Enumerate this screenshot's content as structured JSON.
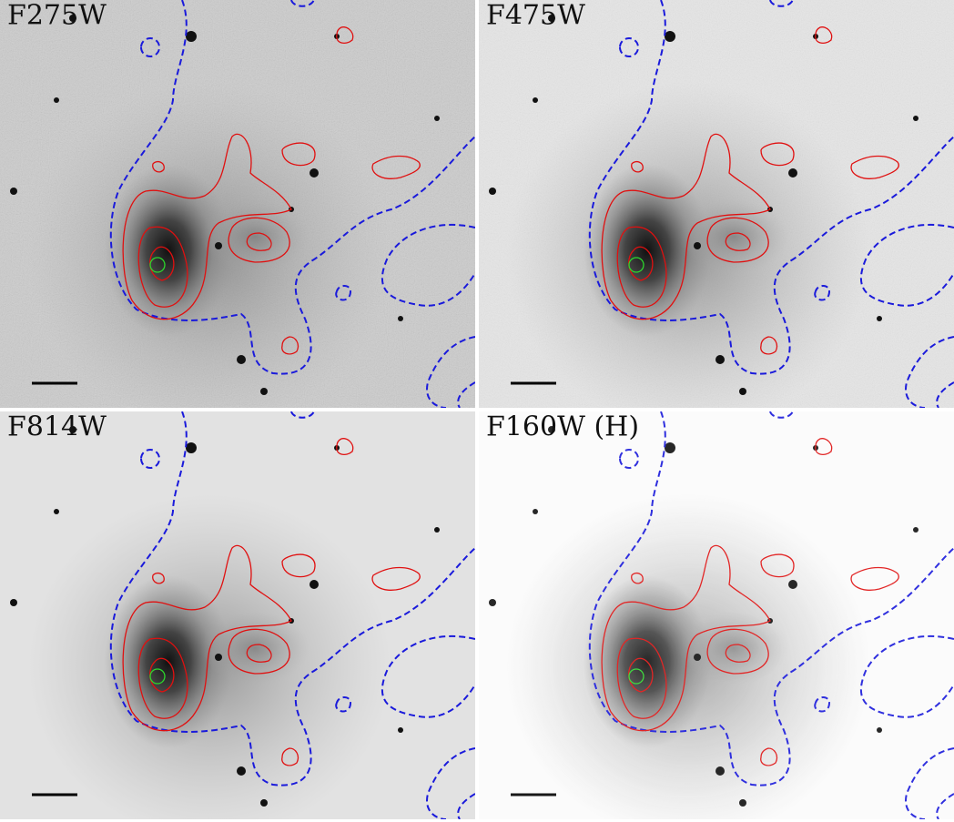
{
  "panels": [
    {
      "label": "F275W"
    },
    {
      "label": "F475W"
    },
    {
      "label": "F814W"
    },
    {
      "label": "F160W (H)"
    }
  ]
}
